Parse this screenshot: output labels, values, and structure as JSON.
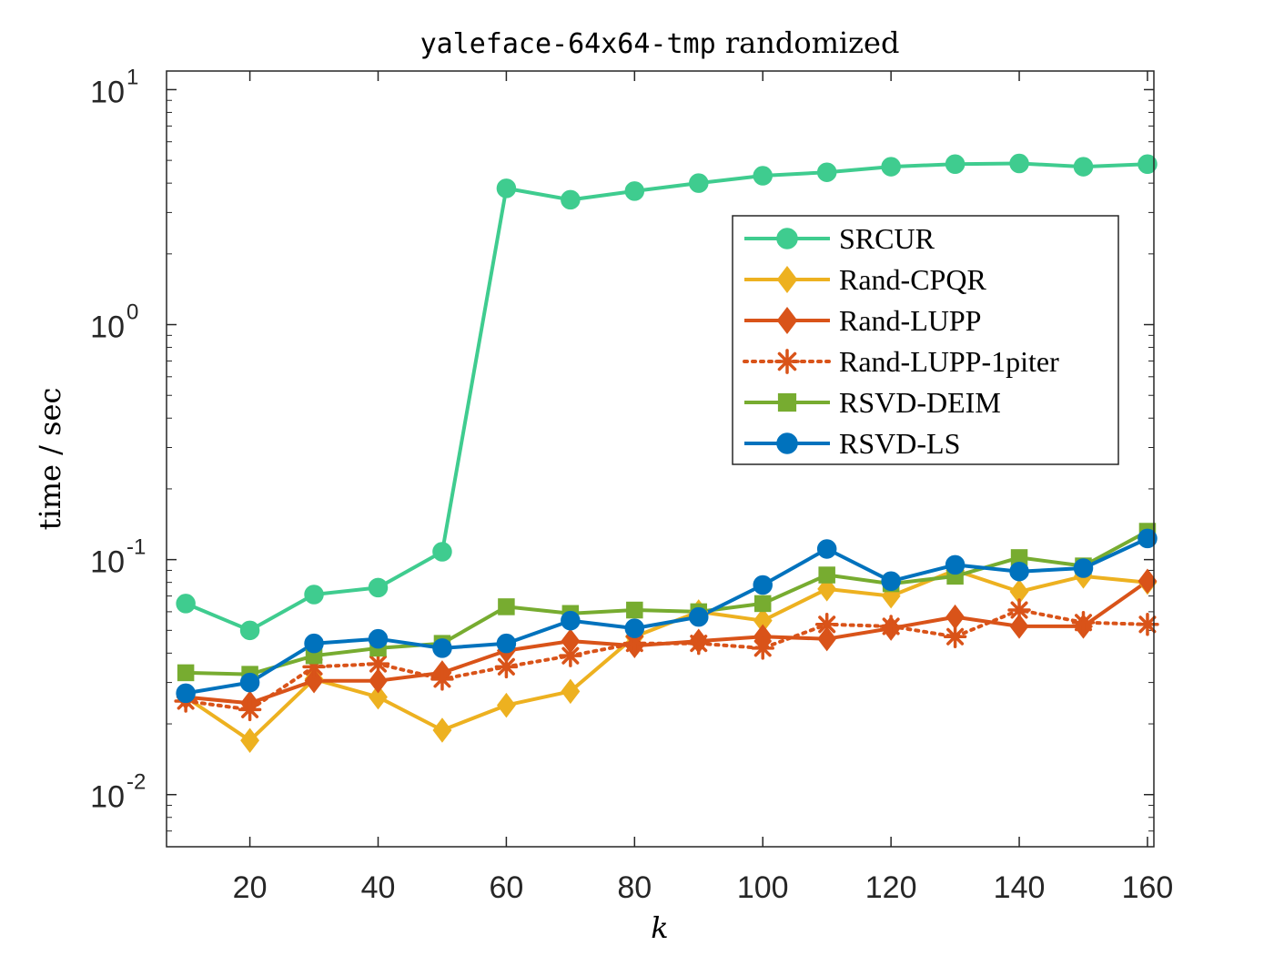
{
  "chart_data": {
    "type": "line",
    "title": {
      "mono": "yaleface-64x64-tmp",
      "text": " randomized"
    },
    "xlabel": "k",
    "ylabel": "time / sec",
    "xlim": [
      7,
      161
    ],
    "ylim": [
      0.006,
      12
    ],
    "yscale": "log",
    "grid": false,
    "legend_position": "right-middle",
    "x_ticks": [
      20,
      40,
      60,
      80,
      100,
      120,
      140,
      160
    ],
    "y_ticks": [
      {
        "value": 0.01,
        "base": "10",
        "exp": "-2"
      },
      {
        "value": 0.1,
        "base": "10",
        "exp": "-1"
      },
      {
        "value": 1,
        "base": "10",
        "exp": "0"
      },
      {
        "value": 10,
        "base": "10",
        "exp": "1"
      }
    ],
    "x": [
      10,
      20,
      30,
      40,
      50,
      60,
      70,
      80,
      90,
      100,
      110,
      120,
      130,
      140,
      150,
      160
    ],
    "series": [
      {
        "name": "SRCUR",
        "color": "#3fcc8f",
        "marker": "circle",
        "dash": "solid",
        "values": [
          0.065,
          0.05,
          0.071,
          0.076,
          0.108,
          3.8,
          3.4,
          3.7,
          4.0,
          4.3,
          4.45,
          4.7,
          4.82,
          4.85,
          4.7,
          4.82
        ]
      },
      {
        "name": "Rand-CPQR",
        "color": "#edb120",
        "marker": "diamond",
        "dash": "solid",
        "values": [
          0.026,
          0.017,
          0.031,
          0.026,
          0.0188,
          0.024,
          0.0275,
          0.047,
          0.06,
          0.055,
          0.075,
          0.07,
          0.09,
          0.073,
          0.085,
          0.08
        ]
      },
      {
        "name": "Rand-LUPP",
        "color": "#d95319",
        "marker": "diamond",
        "dash": "solid",
        "values": [
          0.026,
          0.0245,
          0.0305,
          0.0305,
          0.033,
          0.041,
          0.045,
          0.043,
          0.045,
          0.047,
          0.046,
          0.051,
          0.057,
          0.052,
          0.052,
          0.081
        ]
      },
      {
        "name": "Rand-LUPP-1piter",
        "color": "#d95319",
        "marker": "asterisk",
        "dash": "dotted",
        "values": [
          0.025,
          0.023,
          0.035,
          0.036,
          0.031,
          0.035,
          0.039,
          0.044,
          0.044,
          0.042,
          0.053,
          0.052,
          0.047,
          0.061,
          0.054,
          0.053
        ]
      },
      {
        "name": "RSVD-DEIM",
        "color": "#77ac30",
        "marker": "square",
        "dash": "solid",
        "values": [
          0.033,
          0.0325,
          0.039,
          0.042,
          0.044,
          0.063,
          0.059,
          0.061,
          0.06,
          0.065,
          0.086,
          0.079,
          0.085,
          0.102,
          0.094,
          0.132
        ]
      },
      {
        "name": "RSVD-LS",
        "color": "#0072bd",
        "marker": "circle",
        "dash": "solid",
        "values": [
          0.027,
          0.03,
          0.044,
          0.046,
          0.042,
          0.044,
          0.055,
          0.051,
          0.057,
          0.078,
          0.111,
          0.081,
          0.095,
          0.089,
          0.092,
          0.123
        ]
      }
    ]
  }
}
